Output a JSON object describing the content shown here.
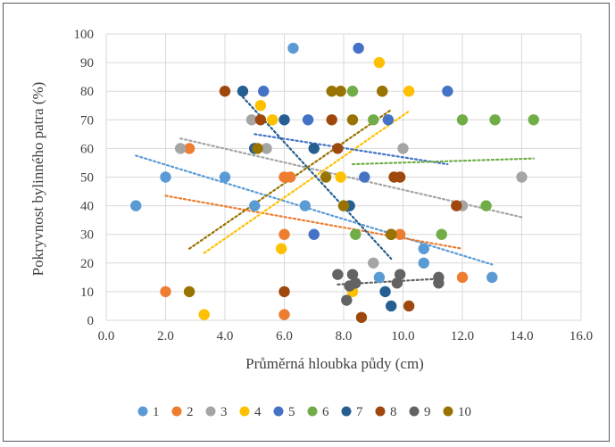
{
  "chart_data": {
    "type": "scatter",
    "title": "",
    "xlabel": "Průměrná hloubka půdy (cm)",
    "ylabel": "Pokryvnost bylinného patra (%)",
    "xlim": [
      0,
      16
    ],
    "ylim": [
      0,
      100
    ],
    "x_ticks": [
      "0.0",
      "2.0",
      "4.0",
      "6.0",
      "8.0",
      "10.0",
      "12.0",
      "14.0",
      "16.0"
    ],
    "y_ticks": [
      "0",
      "10",
      "20",
      "30",
      "40",
      "50",
      "60",
      "70",
      "80",
      "90",
      "100"
    ],
    "grid": true,
    "legend_position": "bottom",
    "trendlines": "linear, dotted, one per series",
    "series": [
      {
        "name": "1",
        "color": "#5B9BD5",
        "points": [
          [
            1.0,
            40
          ],
          [
            2.0,
            50
          ],
          [
            4.0,
            50
          ],
          [
            5.0,
            40
          ],
          [
            6.3,
            95
          ],
          [
            6.7,
            40
          ],
          [
            9.2,
            15
          ],
          [
            10.7,
            20
          ],
          [
            10.7,
            25
          ],
          [
            13.0,
            15
          ]
        ],
        "trend": [
          [
            1.0,
            57.5
          ],
          [
            13.0,
            19.5
          ]
        ]
      },
      {
        "name": "2",
        "color": "#ED7D31",
        "points": [
          [
            2.0,
            10
          ],
          [
            2.8,
            60
          ],
          [
            6.0,
            50
          ],
          [
            6.0,
            30
          ],
          [
            6.0,
            2
          ],
          [
            6.2,
            50
          ],
          [
            9.9,
            30
          ],
          [
            12.0,
            15
          ]
        ],
        "trend": [
          [
            2.0,
            43.5
          ],
          [
            12.0,
            25
          ]
        ]
      },
      {
        "name": "3",
        "color": "#A5A5A5",
        "points": [
          [
            2.5,
            60
          ],
          [
            4.9,
            70
          ],
          [
            5.4,
            60
          ],
          [
            8.0,
            40
          ],
          [
            9.0,
            20
          ],
          [
            9.3,
            80
          ],
          [
            10.0,
            60
          ],
          [
            12.0,
            40
          ],
          [
            14.0,
            50
          ]
        ],
        "trend": [
          [
            2.5,
            63.5
          ],
          [
            14.0,
            36
          ]
        ]
      },
      {
        "name": "4",
        "color": "#FFC000",
        "points": [
          [
            3.3,
            2
          ],
          [
            5.2,
            75
          ],
          [
            5.6,
            70
          ],
          [
            5.9,
            25
          ],
          [
            7.9,
            50
          ],
          [
            8.3,
            10
          ],
          [
            9.2,
            90
          ],
          [
            10.2,
            80
          ]
        ],
        "trend": [
          [
            3.3,
            23.5
          ],
          [
            10.2,
            73
          ]
        ]
      },
      {
        "name": "5",
        "color": "#4472C4",
        "points": [
          [
            5.0,
            60
          ],
          [
            5.3,
            80
          ],
          [
            6.8,
            70
          ],
          [
            7.0,
            30
          ],
          [
            8.5,
            95
          ],
          [
            8.7,
            50
          ],
          [
            9.5,
            70
          ],
          [
            11.5,
            80
          ]
        ],
        "trend": [
          [
            5.0,
            65
          ],
          [
            11.5,
            54.5
          ]
        ]
      },
      {
        "name": "6",
        "color": "#70AD47",
        "points": [
          [
            8.3,
            80
          ],
          [
            8.4,
            30
          ],
          [
            9.0,
            70
          ],
          [
            11.3,
            30
          ],
          [
            12.0,
            70
          ],
          [
            12.8,
            40
          ],
          [
            13.1,
            70
          ],
          [
            14.4,
            70
          ]
        ],
        "trend": [
          [
            8.3,
            54.5
          ],
          [
            14.4,
            56.5
          ]
        ]
      },
      {
        "name": "7",
        "color": "#255E91",
        "points": [
          [
            4.6,
            80
          ],
          [
            5.0,
            60
          ],
          [
            6.0,
            70
          ],
          [
            7.0,
            60
          ],
          [
            8.2,
            40
          ],
          [
            9.4,
            10
          ],
          [
            9.6,
            5
          ],
          [
            9.6,
            30
          ]
        ],
        "trend": [
          [
            4.6,
            78
          ],
          [
            9.6,
            21.5
          ]
        ]
      },
      {
        "name": "8",
        "color": "#9E480E",
        "points": [
          [
            4.0,
            80
          ],
          [
            5.2,
            70
          ],
          [
            6.0,
            10
          ],
          [
            7.6,
            70
          ],
          [
            7.8,
            60
          ],
          [
            9.7,
            50
          ],
          [
            9.9,
            50
          ],
          [
            10.2,
            5
          ],
          [
            11.8,
            40
          ],
          [
            8.6,
            1
          ]
        ],
        "trend": null
      },
      {
        "name": "9",
        "color": "#636363",
        "points": [
          [
            7.8,
            16
          ],
          [
            8.1,
            7
          ],
          [
            8.2,
            12
          ],
          [
            8.3,
            16
          ],
          [
            8.4,
            13
          ],
          [
            9.8,
            13
          ],
          [
            9.9,
            16
          ],
          [
            11.2,
            13
          ],
          [
            11.2,
            15
          ]
        ],
        "trend": [
          [
            7.8,
            12.5
          ],
          [
            11.2,
            14.5
          ]
        ]
      },
      {
        "name": "10",
        "color": "#997300",
        "points": [
          [
            2.8,
            10
          ],
          [
            5.1,
            60
          ],
          [
            7.4,
            50
          ],
          [
            7.6,
            80
          ],
          [
            7.9,
            80
          ],
          [
            8.0,
            40
          ],
          [
            8.3,
            70
          ],
          [
            9.3,
            80
          ],
          [
            9.6,
            30
          ]
        ],
        "trend": [
          [
            2.8,
            25
          ],
          [
            9.6,
            73.5
          ]
        ]
      }
    ]
  }
}
